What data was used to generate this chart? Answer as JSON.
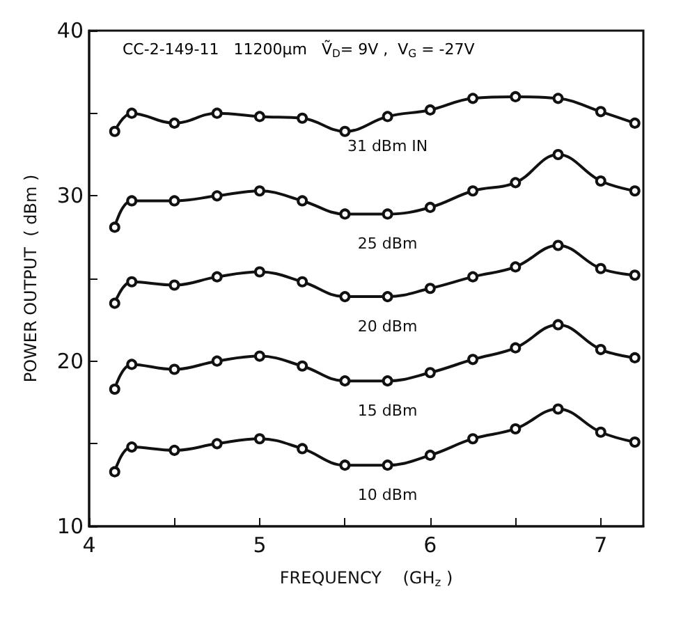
{
  "chart_data": {
    "type": "line",
    "xlabel": "FREQUENCY    (GH$_{z}$ )",
    "ylabel": "POWER OUTPUT  ( dBm )",
    "x": [
      4.15,
      4.25,
      4.5,
      4.75,
      5,
      5.25,
      5.5,
      5.75,
      6,
      6.25,
      6.5,
      6.75,
      7,
      7.2
    ],
    "series": [
      {
        "name": "31 dBm IN",
        "color": "#111111",
        "values": [
          33.9,
          35.0,
          34.4,
          35.0,
          34.8,
          34.7,
          33.9,
          34.8,
          35.2,
          35.9,
          36.0,
          35.9,
          35.1,
          34.4
        ]
      },
      {
        "name": "25 dBm",
        "color": "#111111",
        "values": [
          28.1,
          29.7,
          29.7,
          30.0,
          30.3,
          29.7,
          28.9,
          28.9,
          29.3,
          30.3,
          30.8,
          32.5,
          30.9,
          30.3
        ]
      },
      {
        "name": "20 dBm",
        "color": "#111111",
        "values": [
          23.5,
          24.8,
          24.6,
          25.1,
          25.4,
          24.8,
          23.9,
          23.9,
          24.4,
          25.1,
          25.7,
          27.0,
          25.6,
          25.2
        ]
      },
      {
        "name": "15 dBm",
        "color": "#111111",
        "values": [
          18.3,
          19.8,
          19.5,
          20.0,
          20.3,
          19.7,
          18.8,
          18.8,
          19.3,
          20.1,
          20.8,
          22.2,
          20.7,
          20.2
        ]
      },
      {
        "name": "10 dBm",
        "color": "#111111",
        "values": [
          13.3,
          14.8,
          14.6,
          15.0,
          15.3,
          14.7,
          13.7,
          13.7,
          14.3,
          15.3,
          15.9,
          17.1,
          15.7,
          15.1
        ]
      }
    ],
    "xlim": [
      4,
      7.25
    ],
    "xticks": [
      4,
      {
        "value": 4.5,
        "label": null
      },
      5,
      {
        "value": 5.5,
        "label": null
      },
      6,
      {
        "value": 6.5,
        "label": null
      },
      7
    ],
    "ylim": [
      10,
      40
    ],
    "yticks": [
      10,
      {
        "value": 15,
        "label": null
      },
      20,
      {
        "value": 25,
        "label": null
      },
      30,
      {
        "value": 35,
        "label": null
      },
      40
    ],
    "grid": false,
    "marker": "circle",
    "line_style": "solid",
    "annotations": [
      "CC-2-149-11   11200μm   Ṽ$_{D}$= 9V ,  V$_{G}$ = -27V"
    ]
  }
}
